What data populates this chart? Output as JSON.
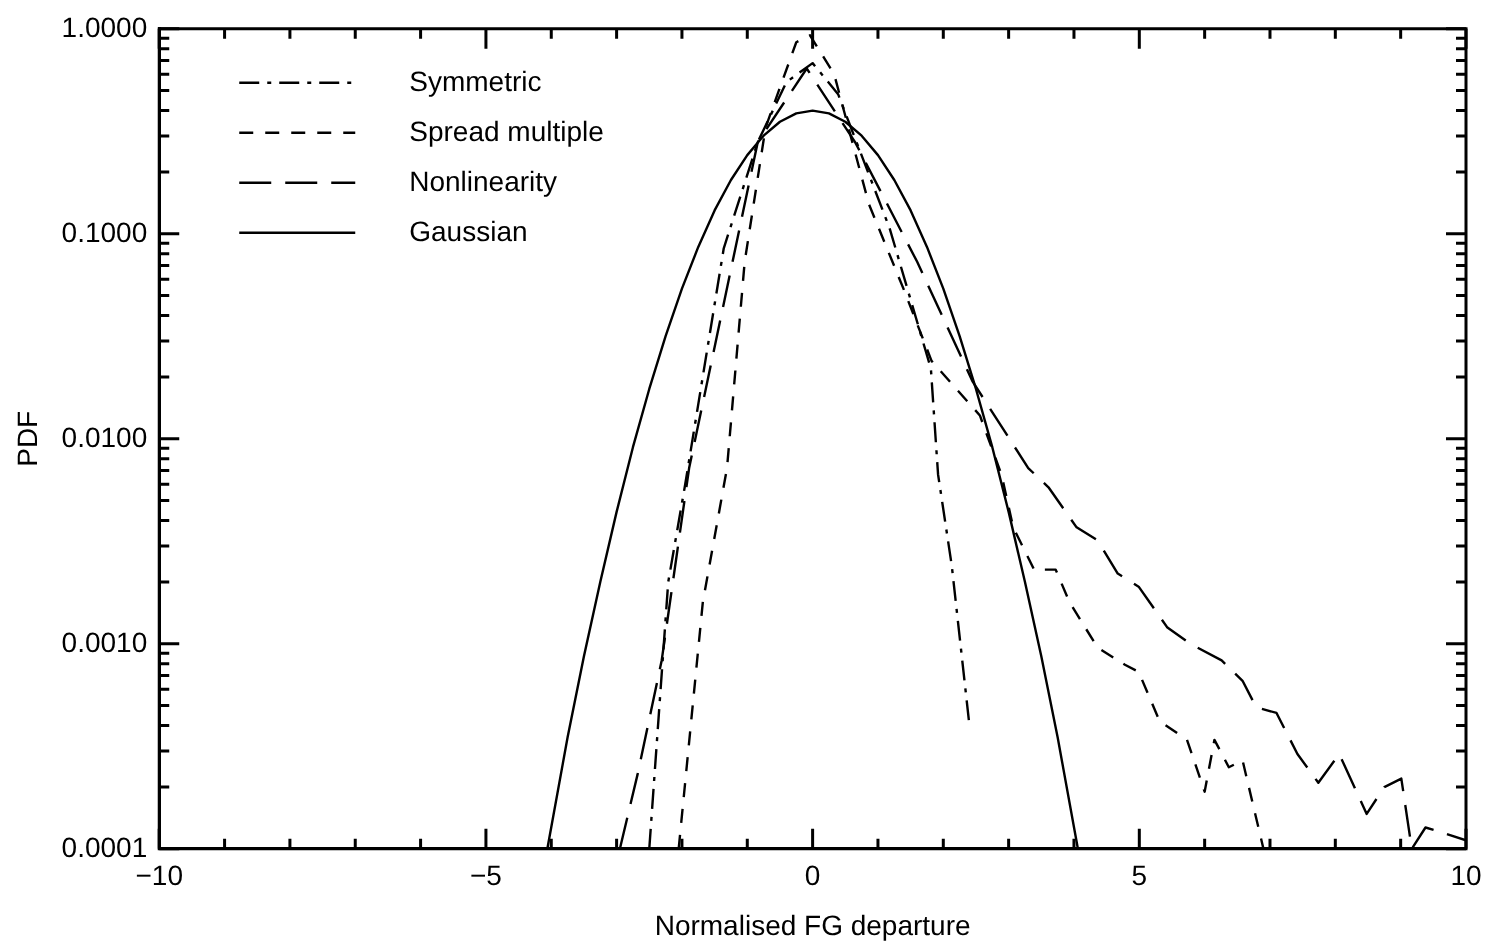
{
  "chart_data": {
    "type": "line",
    "xlabel": "Normalised FG departure",
    "ylabel": "PDF",
    "log": "y",
    "legend": "top left",
    "marker": "none",
    "grid": false,
    "xlim": [
      -10,
      10
    ],
    "ylim": [
      0.0001,
      1
    ],
    "xticks": [
      {
        "value": -10,
        "label": "−10"
      },
      {
        "value": -9,
        "label": null
      },
      {
        "value": -8,
        "label": null
      },
      {
        "value": -7,
        "label": null
      },
      {
        "value": -6,
        "label": null
      },
      {
        "value": -5,
        "label": "−5"
      },
      {
        "value": -4,
        "label": null
      },
      {
        "value": -3,
        "label": null
      },
      {
        "value": -2,
        "label": null
      },
      {
        "value": -1,
        "label": null
      },
      {
        "value": 0,
        "label": "0"
      },
      {
        "value": 1,
        "label": null
      },
      {
        "value": 2,
        "label": null
      },
      {
        "value": 3,
        "label": null
      },
      {
        "value": 4,
        "label": null
      },
      {
        "value": 5,
        "label": "5"
      },
      {
        "value": 6,
        "label": null
      },
      {
        "value": 7,
        "label": null
      },
      {
        "value": 8,
        "label": null
      },
      {
        "value": 9,
        "label": null
      },
      {
        "value": 10,
        "label": "10"
      }
    ],
    "yticks": [
      {
        "value": 0.0001,
        "label": "0.0001"
      },
      {
        "value": 0.0002,
        "label": null
      },
      {
        "value": 0.0003,
        "label": null
      },
      {
        "value": 0.0004,
        "label": null
      },
      {
        "value": 0.0005,
        "label": null
      },
      {
        "value": 0.0006,
        "label": null
      },
      {
        "value": 0.0007,
        "label": null
      },
      {
        "value": 0.0008,
        "label": null
      },
      {
        "value": 0.0009,
        "label": null
      },
      {
        "value": 0.001,
        "label": "0.0010"
      },
      {
        "value": 0.002,
        "label": null
      },
      {
        "value": 0.003,
        "label": null
      },
      {
        "value": 0.004,
        "label": null
      },
      {
        "value": 0.005,
        "label": null
      },
      {
        "value": 0.006,
        "label": null
      },
      {
        "value": 0.007,
        "label": null
      },
      {
        "value": 0.008,
        "label": null
      },
      {
        "value": 0.009,
        "label": null
      },
      {
        "value": 0.01,
        "label": "0.0100"
      },
      {
        "value": 0.02,
        "label": null
      },
      {
        "value": 0.03,
        "label": null
      },
      {
        "value": 0.04,
        "label": null
      },
      {
        "value": 0.05,
        "label": null
      },
      {
        "value": 0.06,
        "label": null
      },
      {
        "value": 0.07,
        "label": null
      },
      {
        "value": 0.08,
        "label": null
      },
      {
        "value": 0.09,
        "label": null
      },
      {
        "value": 0.1,
        "label": "0.1000"
      },
      {
        "value": 0.2,
        "label": null
      },
      {
        "value": 0.3,
        "label": null
      },
      {
        "value": 0.4,
        "label": null
      },
      {
        "value": 0.5,
        "label": null
      },
      {
        "value": 0.6,
        "label": null
      },
      {
        "value": 0.7,
        "label": null
      },
      {
        "value": 0.8,
        "label": null
      },
      {
        "value": 0.9,
        "label": null
      },
      {
        "value": 1,
        "label": "1.0000"
      }
    ],
    "series": [
      {
        "name": "Symmetric",
        "color": "#000000",
        "line_style": "dashdot",
        "x": [
          -2.5,
          -2.21,
          -1.95,
          -1.36,
          -0.84,
          -0.4,
          0,
          0.39,
          1.18,
          1.81,
          1.92,
          2.13,
          2.4
        ],
        "values": [
          0.0001,
          0.002,
          0.006,
          0.085,
          0.28,
          0.55,
          0.68,
          0.48,
          0.106,
          0.022,
          0.0067,
          0.0024,
          0.0004
        ]
      },
      {
        "name": "Spread multiple",
        "color": "#000000",
        "line_style": "dashed",
        "x": [
          -2.05,
          -1.68,
          -1.31,
          -1.04,
          -0.72,
          -0.25,
          -0.04,
          0.33,
          0.86,
          1.39,
          1.82,
          2.56,
          2.89,
          3.07,
          3.39,
          3.72,
          3.93,
          4.36,
          4.78,
          4.99,
          5.31,
          5.73,
          6.0,
          6.15,
          6.37,
          6.58,
          6.9
        ],
        "values": [
          0.0001,
          0.0016,
          0.0072,
          0.073,
          0.33,
          0.86,
          0.93,
          0.6,
          0.14,
          0.054,
          0.024,
          0.013,
          0.0067,
          0.0037,
          0.0023,
          0.0023,
          0.0016,
          0.00096,
          0.00079,
          0.00073,
          0.00042,
          0.00034,
          0.00019,
          0.00034,
          0.00025,
          0.00027,
          0.0001
        ]
      },
      {
        "name": "Nonlinearity",
        "color": "#000000",
        "line_style": "longdash",
        "x": [
          -2.95,
          -2.68,
          -2.31,
          -1.89,
          -0.84,
          -0.09,
          0.65,
          1.6,
          2.45,
          3.3,
          3.61,
          4.04,
          4.36,
          4.67,
          4.99,
          5.43,
          5.78,
          6.26,
          6.58,
          6.79,
          7.1,
          7.42,
          7.74,
          8.06,
          8.48,
          8.75,
          9.01,
          9.17,
          9.38,
          9.64,
          10
        ],
        "values": [
          0.0001,
          0.00023,
          0.00083,
          0.0072,
          0.28,
          0.64,
          0.28,
          0.073,
          0.019,
          0.0072,
          0.0058,
          0.0037,
          0.0032,
          0.0022,
          0.0019,
          0.0012,
          0.001,
          0.00083,
          0.00066,
          0.00049,
          0.00046,
          0.00029,
          0.00021,
          0.00029,
          0.000148,
          0.0002,
          0.00022,
          0.0001,
          0.000127,
          0.00012,
          0.00011
        ]
      },
      {
        "name": "Gaussian",
        "color": "#000000",
        "line_style": "solid",
        "x": [
          -4.06,
          -3.75,
          -3.5,
          -3.25,
          -3,
          -2.75,
          -2.5,
          -2.25,
          -2,
          -1.75,
          -1.5,
          -1.25,
          -1,
          -0.75,
          -0.5,
          -0.25,
          0,
          0.25,
          0.5,
          0.75,
          1,
          1.25,
          1.5,
          1.75,
          2,
          2.25,
          2.5,
          2.75,
          3,
          3.25,
          3.5,
          3.75,
          4.06
        ],
        "values": [
          0.0001,
          0.00035,
          0.00087,
          0.002,
          0.0044,
          0.0091,
          0.0175,
          0.0317,
          0.054,
          0.0863,
          0.13,
          0.183,
          0.242,
          0.301,
          0.352,
          0.387,
          0.399,
          0.387,
          0.352,
          0.301,
          0.242,
          0.183,
          0.13,
          0.0863,
          0.054,
          0.0317,
          0.0175,
          0.0091,
          0.0044,
          0.002,
          0.00087,
          0.00035,
          0.0001
        ]
      }
    ]
  }
}
